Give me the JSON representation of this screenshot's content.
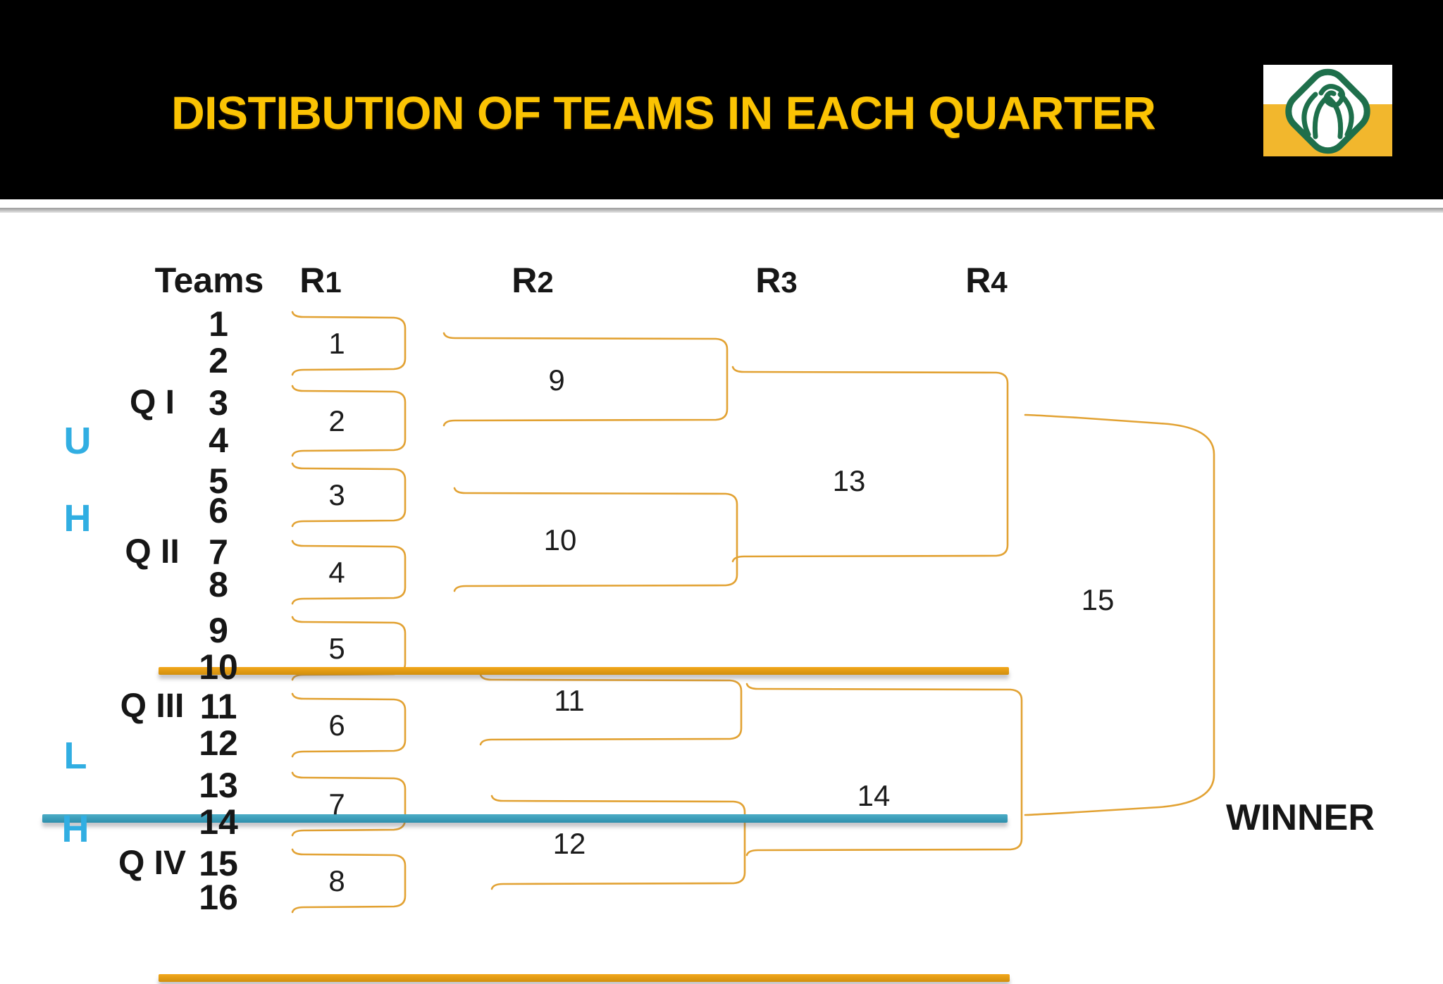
{
  "header": {
    "title": "DISTIBUTION OF TEAMS IN EACH QUARTER"
  },
  "logo": {
    "description": "rose-emblem"
  },
  "columns": {
    "teams_label": "Teams",
    "rounds": [
      {
        "prefix": "R",
        "sub": "1"
      },
      {
        "prefix": "R",
        "sub": "2"
      },
      {
        "prefix": "R",
        "sub": "3"
      },
      {
        "prefix": "R",
        "sub": "4"
      }
    ]
  },
  "teams": [
    "1",
    "2",
    "3",
    "4",
    "5",
    "6",
    "7",
    "8",
    "9",
    "10",
    "11",
    "12",
    "13",
    "14",
    "15",
    "16"
  ],
  "quarters": [
    "Q I",
    "Q II",
    "Q III",
    "Q IV"
  ],
  "half_labels": [
    "U",
    "H",
    "L",
    "H"
  ],
  "matches": {
    "round1": [
      "1",
      "2",
      "3",
      "4",
      "5",
      "6",
      "7",
      "8"
    ],
    "round2": [
      "9",
      "10",
      "11",
      "12"
    ],
    "round3": [
      "13",
      "14"
    ],
    "final": "15"
  },
  "winner_label": "WINNER",
  "colors": {
    "title_gold": "#FBC303",
    "bracket_line": "#E2A233",
    "divider_orange": "#F2A71B",
    "divider_blue": "#4BACC6",
    "half_letter_blue": "#31AEE2",
    "header_background": "#000000",
    "logo_green": "#1E6F4B",
    "logo_yellow": "#F2B72D"
  }
}
